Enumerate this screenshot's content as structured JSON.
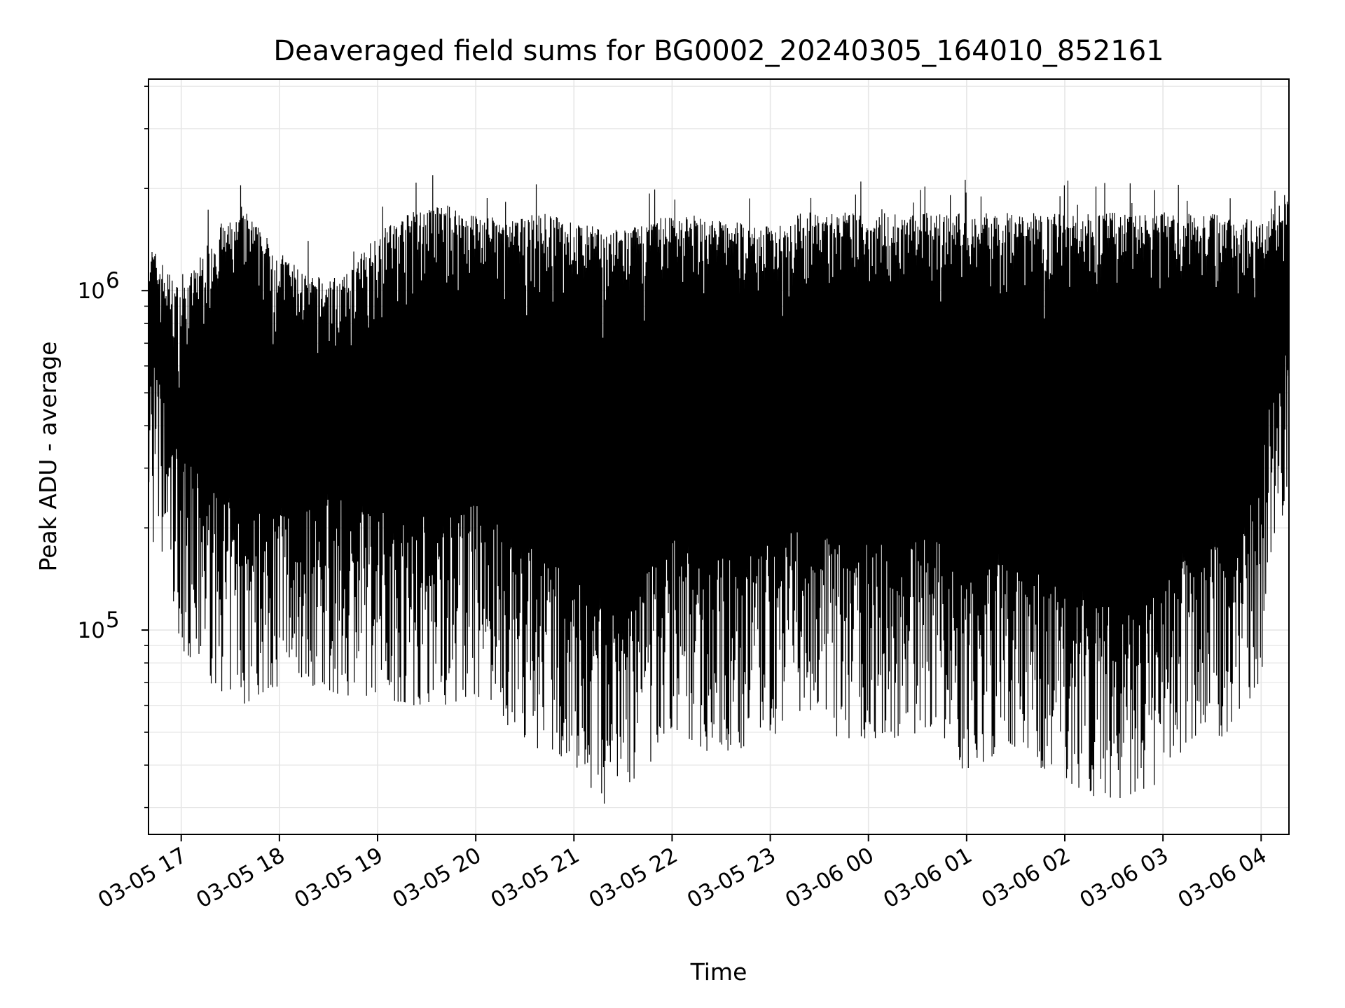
{
  "chart_data": {
    "type": "line",
    "title": "Deaveraged field sums for BG0002_20240305_164010_852161",
    "xlabel": "Time",
    "ylabel": "Peak ADU - average",
    "x_scale": "time",
    "y_scale": "log",
    "xlim": [
      "2024-03-05 16:40",
      "2024-03-06 04:17"
    ],
    "ylim": [
      25000,
      4200000
    ],
    "x_ticks": [
      {
        "value": "2024-03-05 17:00",
        "label": "03-05 17"
      },
      {
        "value": "2024-03-05 18:00",
        "label": "03-05 18"
      },
      {
        "value": "2024-03-05 19:00",
        "label": "03-05 19"
      },
      {
        "value": "2024-03-05 20:00",
        "label": "03-05 20"
      },
      {
        "value": "2024-03-05 21:00",
        "label": "03-05 21"
      },
      {
        "value": "2024-03-05 22:00",
        "label": "03-05 22"
      },
      {
        "value": "2024-03-05 23:00",
        "label": "03-05 23"
      },
      {
        "value": "2024-03-06 00:00",
        "label": "03-06 00"
      },
      {
        "value": "2024-03-06 01:00",
        "label": "03-06 01"
      },
      {
        "value": "2024-03-06 02:00",
        "label": "03-06 02"
      },
      {
        "value": "2024-03-06 03:00",
        "label": "03-06 03"
      },
      {
        "value": "2024-03-06 04:00",
        "label": "03-06 04"
      }
    ],
    "y_ticks": [
      {
        "value": 100000,
        "base": "10",
        "exp": "5"
      },
      {
        "value": 1000000,
        "base": "10",
        "exp": "6"
      }
    ],
    "grid": true,
    "line_color": "#000000",
    "grid_color": "#e6e6e6",
    "series": [
      {
        "x": [
          "2024-03-05 16:40",
          "2024-03-05 17:00",
          "2024-03-05 17:20",
          "2024-03-05 17:40",
          "2024-03-05 18:00",
          "2024-03-05 18:20",
          "2024-03-05 18:40",
          "2024-03-05 19:00",
          "2024-03-05 19:20",
          "2024-03-05 19:40",
          "2024-03-05 20:00",
          "2024-03-05 20:20",
          "2024-03-05 20:40",
          "2024-03-05 21:00",
          "2024-03-05 21:20",
          "2024-03-05 21:40",
          "2024-03-05 22:00",
          "2024-03-05 22:20",
          "2024-03-05 22:40",
          "2024-03-05 23:00",
          "2024-03-05 23:20",
          "2024-03-05 23:40",
          "2024-03-06 00:00",
          "2024-03-06 00:20",
          "2024-03-06 00:40",
          "2024-03-06 01:00",
          "2024-03-06 01:20",
          "2024-03-06 01:40",
          "2024-03-06 02:00",
          "2024-03-06 02:20",
          "2024-03-06 02:40",
          "2024-03-06 03:00",
          "2024-03-06 03:20",
          "2024-03-06 03:40",
          "2024-03-06 04:00",
          "2024-03-06 04:10",
          "2024-03-06 04:17"
        ],
        "upper": [
          1400000,
          1000000,
          1500000,
          1700000,
          1300000,
          1100000,
          1100000,
          1500000,
          1700000,
          1800000,
          1700000,
          1600000,
          1700000,
          1600000,
          1500000,
          1550000,
          1700000,
          1650000,
          1600000,
          1550000,
          1700000,
          1700000,
          1700000,
          1700000,
          1700000,
          1700000,
          1700000,
          1700000,
          1700000,
          1700000,
          1700000,
          1700000,
          1700000,
          1700000,
          1600000,
          1900000,
          1900000
        ],
        "lower": [
          250000,
          110000,
          85000,
          75000,
          85000,
          85000,
          80000,
          80000,
          75000,
          75000,
          80000,
          65000,
          55000,
          50000,
          37000,
          45000,
          65000,
          55000,
          55000,
          60000,
          70000,
          60000,
          60000,
          60000,
          65000,
          45000,
          55000,
          50000,
          45000,
          40000,
          40000,
          45000,
          60000,
          60000,
          90000,
          300000,
          200000
        ]
      }
    ]
  }
}
